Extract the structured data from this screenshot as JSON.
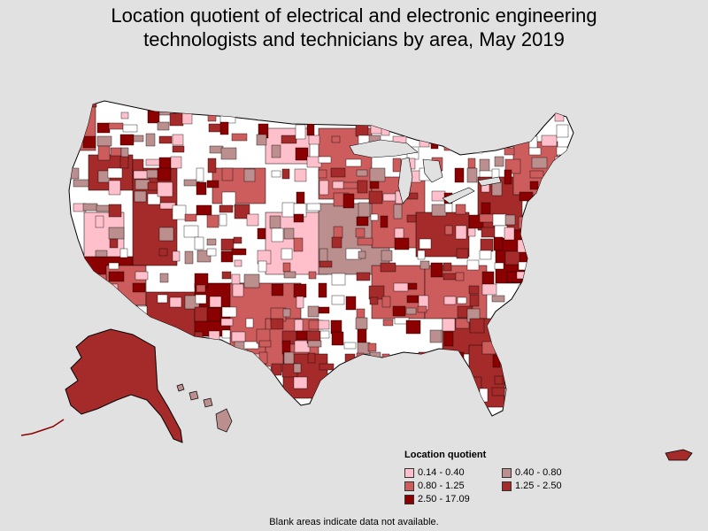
{
  "title_line1": "Location quotient of electrical and electronic engineering",
  "title_line2": "technologists and technicians by area, May 2019",
  "legend": {
    "title": "Location quotient",
    "items": [
      {
        "label": "0.14 - 0.40",
        "color": "#ffc0cb"
      },
      {
        "label": "0.40 - 0.80",
        "color": "#bc8f8f"
      },
      {
        "label": "0.80 - 1.25",
        "color": "#cd5c5c"
      },
      {
        "label": "1.25 - 2.50",
        "color": "#a52a2a"
      },
      {
        "label": "2.50 - 17.09",
        "color": "#8b0000"
      }
    ]
  },
  "footnote": "Blank areas indicate data not available.",
  "colors": {
    "background": "#e1e1e1",
    "no_data": "#ffffff",
    "border": "#000000"
  }
}
